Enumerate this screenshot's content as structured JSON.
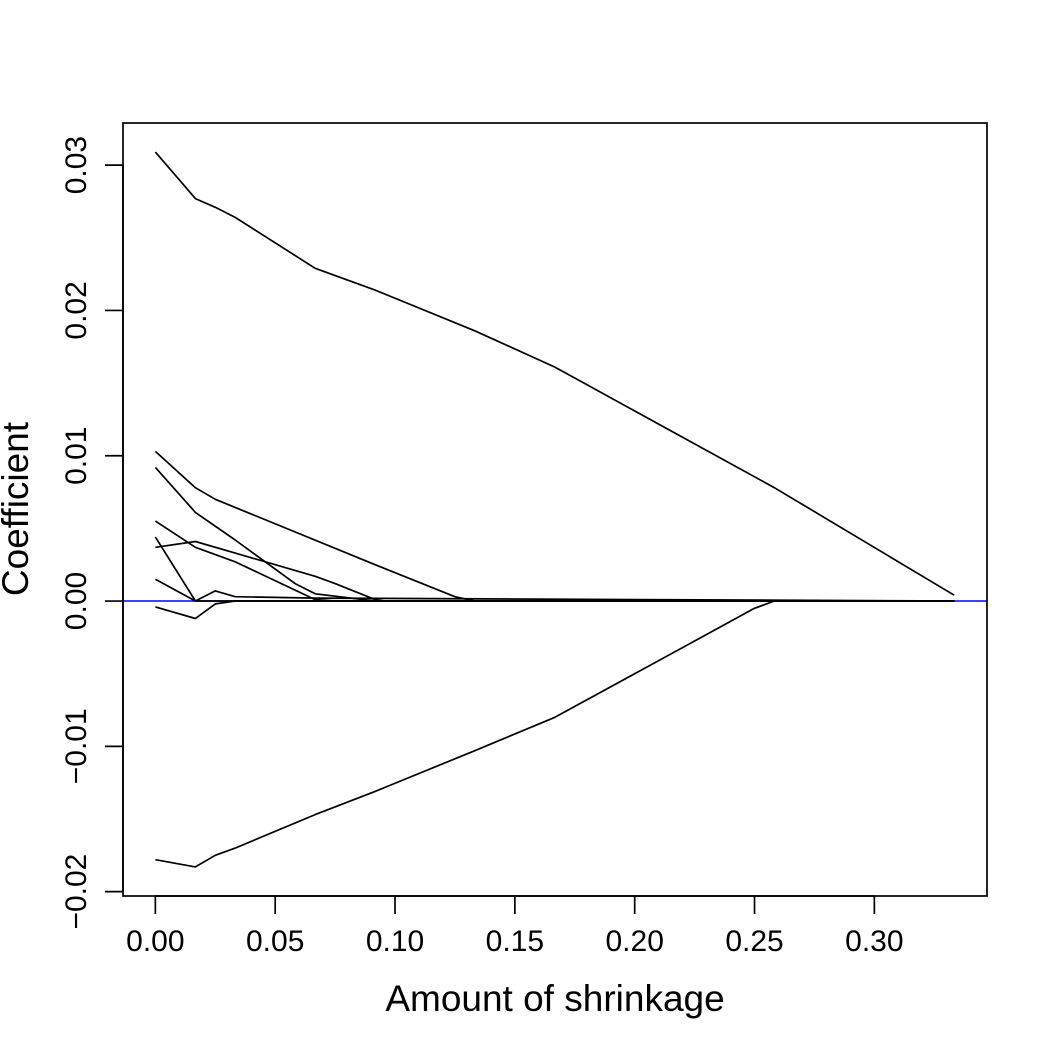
{
  "chart_data": {
    "type": "line",
    "title": "",
    "xlabel": "Amount of shrinkage",
    "ylabel": "Coefficient",
    "xlim": [
      -0.0135,
      0.347
    ],
    "ylim": [
      -0.0203,
      0.0329
    ],
    "x_ticks": [
      0.0,
      0.05,
      0.1,
      0.15,
      0.2,
      0.25,
      0.3
    ],
    "x_tick_labels": [
      "0.00",
      "0.05",
      "0.10",
      "0.15",
      "0.20",
      "0.25",
      "0.30"
    ],
    "y_ticks": [
      -0.02,
      -0.01,
      0.0,
      0.01,
      0.02,
      0.03
    ],
    "y_tick_labels": [
      "−0.02",
      "−0.01",
      "0.00",
      "0.01",
      "0.02",
      "0.03"
    ],
    "grid": false,
    "legend": false,
    "reference_line": {
      "y": 0,
      "color": "#0000ff"
    },
    "series": [
      {
        "x": [
          0,
          0.0167,
          0.025,
          0.0333,
          0.0667,
          0.0917,
          0.1333,
          0.1667,
          0.2583,
          0.3333
        ],
        "y": [
          0.0309,
          0.0277,
          0.0271,
          0.0264,
          0.0229,
          0.0214,
          0.0186,
          0.0161,
          0.0078,
          0.0004
        ]
      },
      {
        "x": [
          0,
          0.0167,
          0.025,
          0.0917,
          0.125,
          0.1333,
          0.3333
        ],
        "y": [
          0.0103,
          0.0078,
          0.007,
          0.0025,
          0.0003,
          0.0,
          0.0
        ]
      },
      {
        "x": [
          0,
          0.0167,
          0.0333,
          0.0583,
          0.0667,
          0.0917,
          0.3333
        ],
        "y": [
          0.0092,
          0.0061,
          0.0042,
          0.0012,
          0.0005,
          0.0,
          0.0
        ]
      },
      {
        "x": [
          0,
          0.0167,
          0.0333,
          0.0667,
          0.075,
          0.0917,
          0.0958,
          0.3333
        ],
        "y": [
          0.0055,
          0.0037,
          0.0027,
          0.0001,
          0.0,
          0.0,
          0.0,
          0.0
        ]
      },
      {
        "x": [
          0,
          0.0167,
          0.0333,
          0.0667,
          0.075,
          0.0917,
          0.0958,
          0.3333
        ],
        "y": [
          0.0037,
          0.0041,
          0.0033,
          0.0017,
          0.0012,
          0.0001,
          0.0,
          0.0
        ]
      },
      {
        "x": [
          0,
          0.0167,
          0.0333,
          0.0667,
          0.075,
          0.3333
        ],
        "y": [
          0.0044,
          0.0,
          0.0,
          0.0,
          0.0,
          0.0
        ]
      },
      {
        "x": [
          0,
          0.0167,
          0.025,
          0.0333,
          0.0667,
          0.3333
        ],
        "y": [
          0.0015,
          0.0,
          0.0007,
          0.0003,
          0.0002,
          0.0
        ]
      },
      {
        "x": [
          0,
          0.0167,
          0.025,
          0.0333,
          0.3333
        ],
        "y": [
          -0.0004,
          -0.0012,
          -0.0002,
          0.0,
          0.0
        ]
      },
      {
        "x": [
          0,
          0.0167,
          0.025,
          0.0333,
          0.0667,
          0.0917,
          0.1333,
          0.1667,
          0.25,
          0.2583,
          0.3333
        ],
        "y": [
          -0.0178,
          -0.0183,
          -0.0175,
          -0.017,
          -0.0147,
          -0.0131,
          -0.0103,
          -0.008,
          -0.0005,
          0.0,
          0.0
        ]
      }
    ]
  }
}
